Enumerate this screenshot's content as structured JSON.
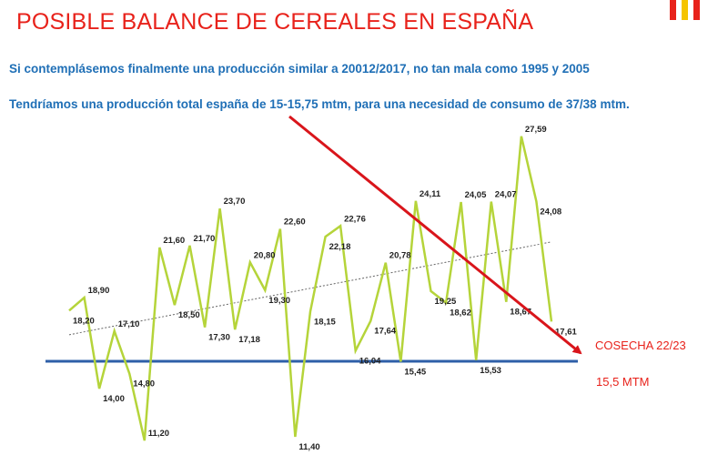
{
  "header": {
    "title": "POSIBLE BALANCE DE CEREALES EN ESPAÑA",
    "subtitle1": "Si contemplásemos finalmente una producción similar a 20012/2017, no tan mala como 1995 y 2005",
    "subtitle2": "Tendríamos una producción total españa de 15-15,75 mtm, para una necesidad de consumo de 37/38 mtm."
  },
  "colors": {
    "title": "#e8221b",
    "subtitle": "#1f6fb6",
    "series": "#b5d43a",
    "trend": "#666666",
    "reference_line": "#2e5fa8",
    "arrow": "#d9151b",
    "flag": [
      "#e8221b",
      "#f5c400"
    ]
  },
  "chart_data": {
    "type": "line",
    "values": [
      18.2,
      18.9,
      14.0,
      17.1,
      14.8,
      11.2,
      21.6,
      18.5,
      21.7,
      17.3,
      23.7,
      17.18,
      20.8,
      19.3,
      22.6,
      11.4,
      18.15,
      22.18,
      22.76,
      16.04,
      17.64,
      20.78,
      15.45,
      24.11,
      19.25,
      18.62,
      24.05,
      15.53,
      24.07,
      18.67,
      27.59,
      24.08,
      17.61
    ],
    "labels": [
      "18,20",
      "18,90",
      "14,00",
      "17,10",
      "14,80",
      "11,20",
      "21,60",
      "18,50",
      "21,70",
      "17,30",
      "23,70",
      "17,18",
      "20,80",
      "19,30",
      "22,60",
      "11,40",
      "18,15",
      "22,18",
      "22,76",
      "16,04",
      "17,64",
      "20,78",
      "15,45",
      "24,11",
      "19,25",
      "18,62",
      "24,05",
      "15,53",
      "24,07",
      "18,67",
      "27,59",
      "24,08",
      "17,61"
    ],
    "trend": {
      "start": 16.9,
      "end": 21.9
    },
    "reference_value": 15.5,
    "ylim": [
      11.0,
      28.0
    ],
    "grid": false,
    "annotations": [
      "COSECHA 22/23",
      "15,5 MTM"
    ]
  }
}
